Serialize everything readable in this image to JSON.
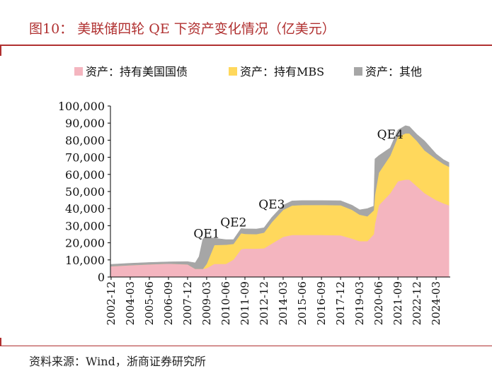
{
  "header": {
    "title": "图10：  美联储四轮 QE 下资产变化情况（亿美元）"
  },
  "footer": {
    "source": "资料来源：Wind，浙商证券研究所"
  },
  "colors": {
    "treasury": "#f4b5bf",
    "mbs": "#ffd85c",
    "other": "#a6a6a6",
    "title": "#b03030"
  },
  "chart_data": {
    "type": "area",
    "stacked": true,
    "title": "图10：  美联储四轮 QE 下资产变化情况（亿美元）",
    "xlabel": "",
    "ylabel": "",
    "ylim": [
      0,
      100000
    ],
    "yticks": [
      "0",
      "10,000",
      "20,000",
      "30,000",
      "40,000",
      "50,000",
      "60,000",
      "70,000",
      "80,000",
      "90,000",
      "100,000"
    ],
    "xtick_labels": [
      "2002-12",
      "2004-03",
      "2005-06",
      "2006-09",
      "2007-12",
      "2009-03",
      "2010-06",
      "2011-09",
      "2012-12",
      "2014-03",
      "2015-06",
      "2016-09",
      "2017-12",
      "2019-03",
      "2020-06",
      "2021-09",
      "2022-12",
      "2024-03"
    ],
    "legend_position": "top",
    "grid": false,
    "x": [
      "2002-12",
      "2004-03",
      "2005-06",
      "2006-09",
      "2007-12",
      "2008-06",
      "2008-09",
      "2008-12",
      "2009-03",
      "2009-09",
      "2010-06",
      "2010-12",
      "2011-06",
      "2011-09",
      "2012-06",
      "2012-12",
      "2013-06",
      "2014-03",
      "2014-10",
      "2015-06",
      "2016-09",
      "2017-12",
      "2018-09",
      "2019-03",
      "2019-09",
      "2020-02",
      "2020-03",
      "2020-06",
      "2021-03",
      "2021-09",
      "2022-03",
      "2022-06",
      "2022-12",
      "2023-06",
      "2024-03",
      "2024-09",
      "2025-01"
    ],
    "series": [
      {
        "name": "资产：持有美国国债",
        "values": [
          6300,
          6900,
          7400,
          7800,
          7400,
          4800,
          4800,
          4800,
          5200,
          7700,
          7700,
          10200,
          16300,
          16600,
          16600,
          16800,
          19500,
          23500,
          24600,
          24600,
          24600,
          24400,
          22500,
          21000,
          21000,
          25000,
          31000,
          42000,
          49000,
          56000,
          57000,
          57000,
          53000,
          49000,
          45000,
          43000,
          42000
        ]
      },
      {
        "name": "资产：持有MBS",
        "values": [
          0,
          0,
          0,
          0,
          0,
          0,
          0,
          0,
          2500,
          11000,
          11200,
          9200,
          9300,
          8600,
          8500,
          9200,
          12500,
          15800,
          17200,
          17500,
          17600,
          17600,
          16800,
          15500,
          14500,
          14000,
          17000,
          19000,
          22000,
          26000,
          27000,
          27000,
          26500,
          25000,
          24000,
          23000,
          22500
        ]
      },
      {
        "name": "资产：其他",
        "values": [
          1100,
          1100,
          1100,
          1100,
          1600,
          3500,
          7200,
          17500,
          15500,
          4000,
          3000,
          2500,
          2800,
          3000,
          3000,
          2800,
          2800,
          2700,
          2700,
          2600,
          2500,
          2600,
          2700,
          2800,
          4500,
          2500,
          21000,
          10000,
          4500,
          4000,
          4500,
          4000,
          3800,
          5500,
          3000,
          2500,
          2500
        ]
      }
    ],
    "annotations": [
      {
        "text": "QE1",
        "x": "2009-03",
        "y": 23000
      },
      {
        "text": "QE2",
        "x": "2010-12",
        "y": 29500
      },
      {
        "text": "QE3",
        "x": "2013-06",
        "y": 40000
      },
      {
        "text": "QE4",
        "x": "2021-03",
        "y": 81000
      }
    ]
  }
}
